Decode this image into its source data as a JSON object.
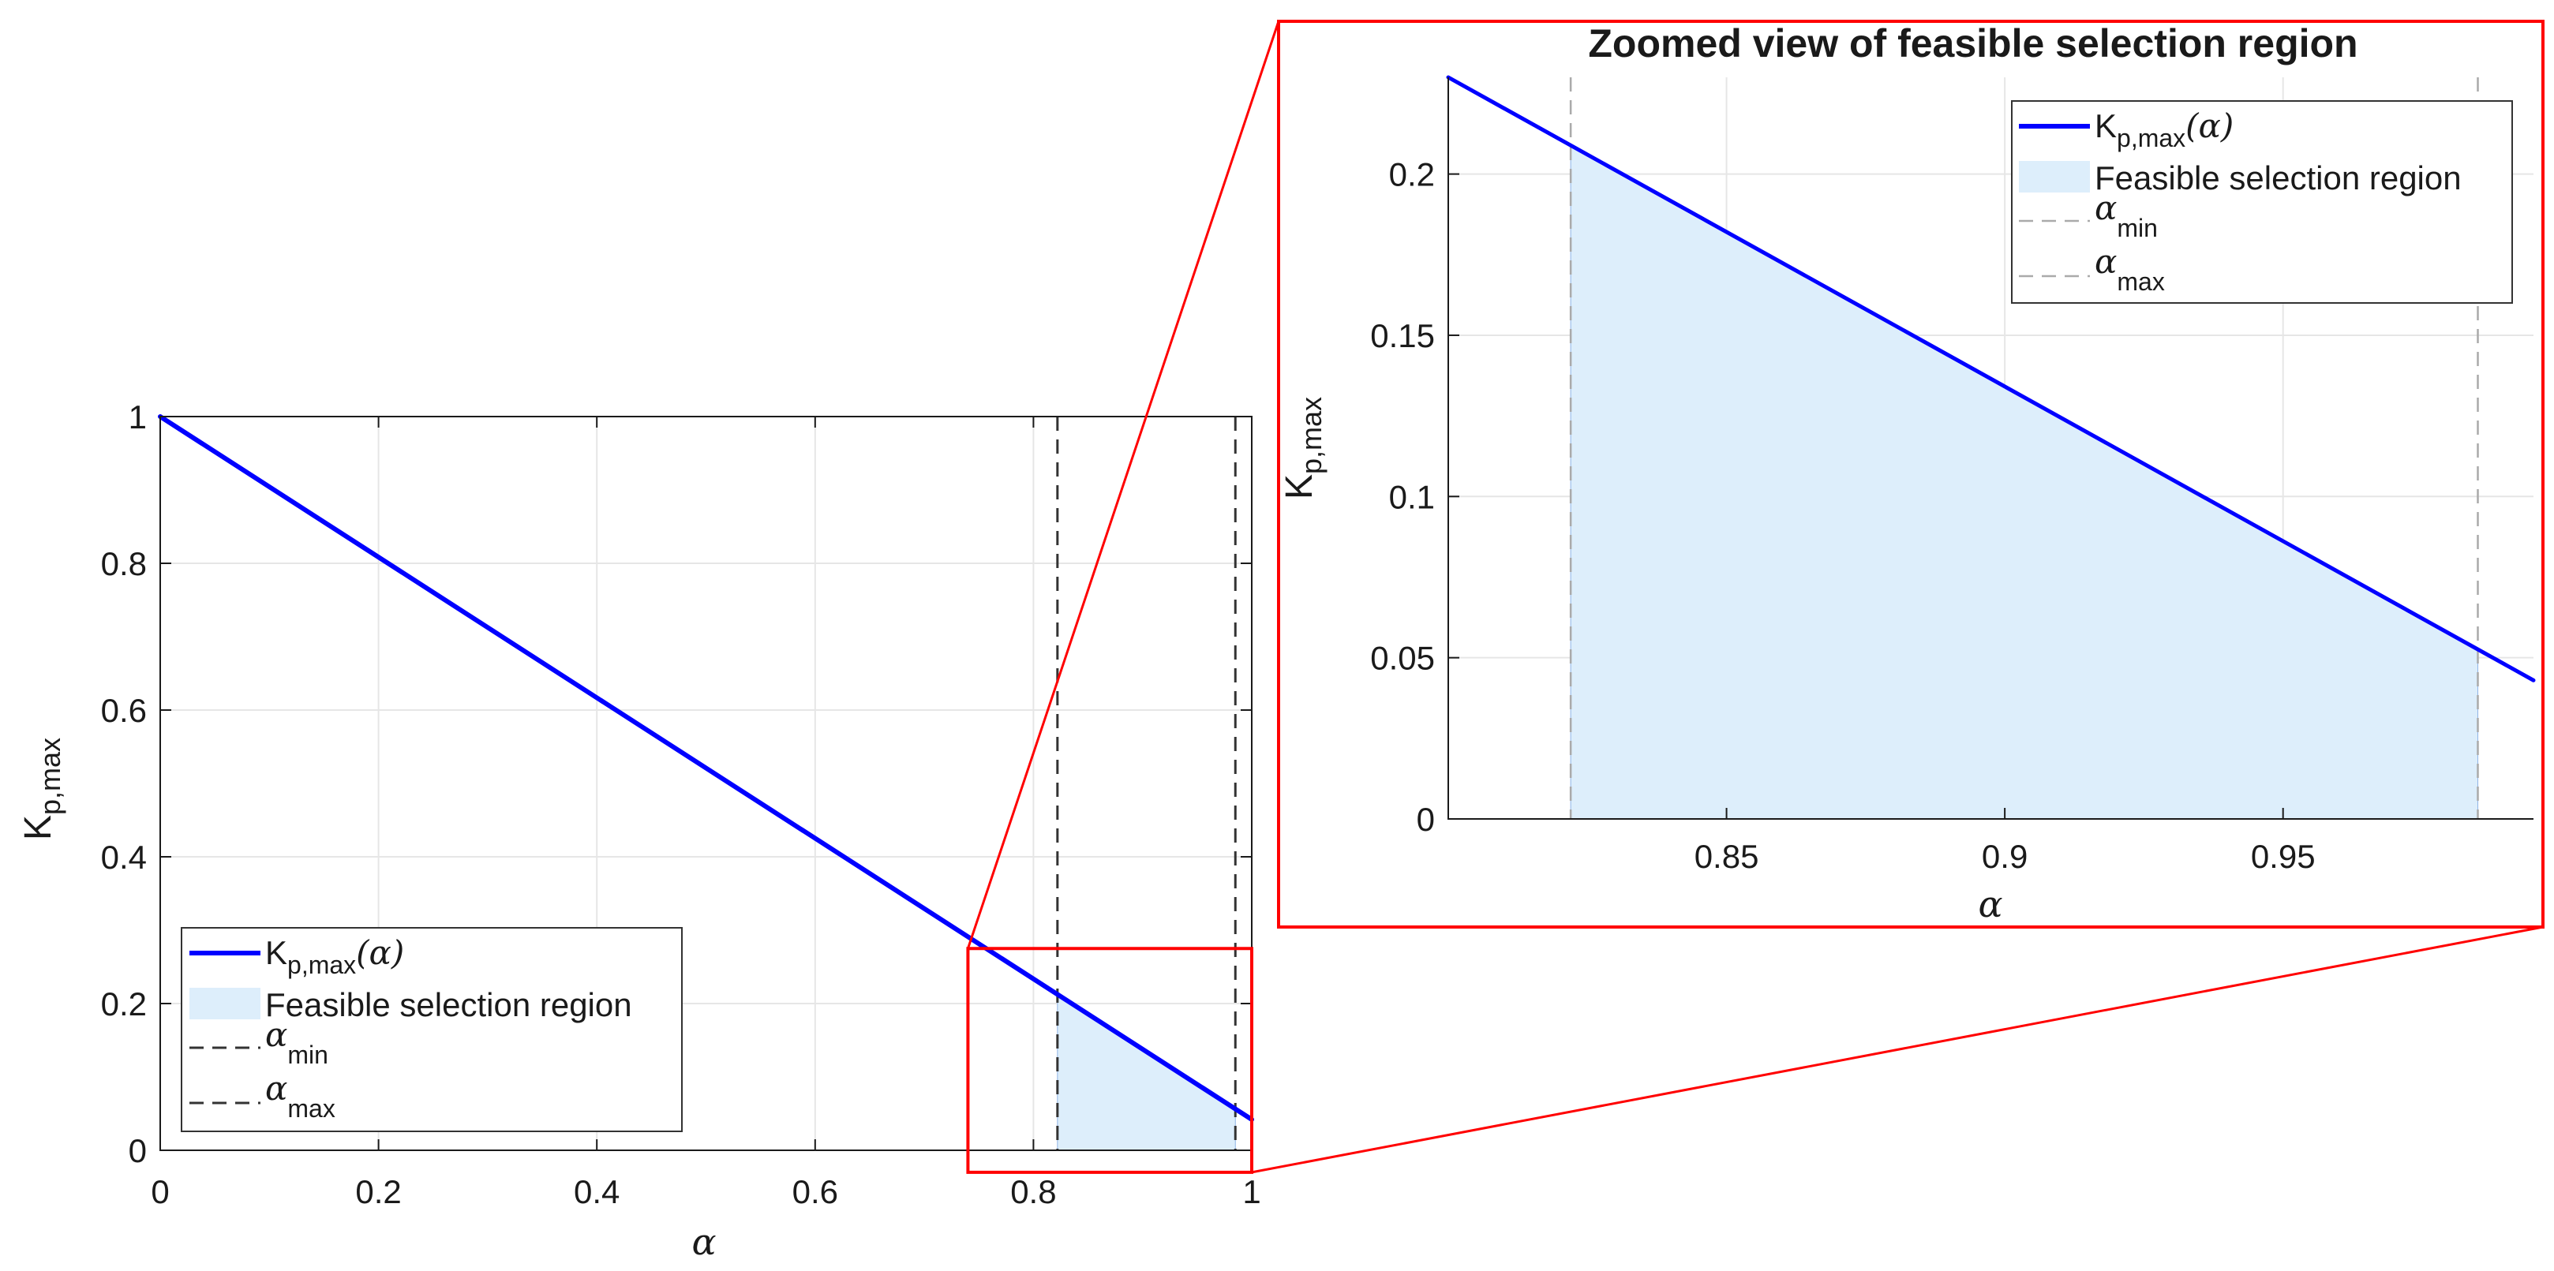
{
  "chart_data": [
    {
      "type": "line",
      "xlabel": "α",
      "ylabel_main": "K",
      "ylabel_sub": "p,max",
      "xlim": [
        0,
        1
      ],
      "ylim": [
        0,
        1
      ],
      "xticks": [
        0,
        0.2,
        0.4,
        0.6,
        0.8,
        1
      ],
      "yticks": [
        0,
        0.2,
        0.4,
        0.6,
        0.8,
        1
      ],
      "xtick_labels": [
        "0",
        "0.2",
        "0.4",
        "0.6",
        "0.8",
        "1"
      ],
      "ytick_labels": [
        "0",
        "0.2",
        "0.4",
        "0.6",
        "0.8",
        "1"
      ],
      "grid": true,
      "legend_placement": "bottom-left",
      "series": [
        {
          "name": "Kp,max(α)",
          "x": [
            0,
            1
          ],
          "y": [
            1,
            0.042
          ],
          "color": "#0000ff"
        }
      ],
      "feasible_region": {
        "name": "Feasible selection region",
        "x_start": 0.822,
        "x_end": 0.985,
        "color": "#ddeefb"
      },
      "alpha_min": 0.822,
      "alpha_max": 0.985,
      "zoom_box": {
        "x": [
          0.74,
          1.0
        ],
        "y": [
          -0.03,
          0.275
        ],
        "color": "#ff0000"
      }
    },
    {
      "type": "line",
      "title": "Zoomed view of feasible selection region",
      "xlabel": "α",
      "ylabel_main": "K",
      "ylabel_sub": "p,max",
      "xlim": [
        0.8,
        0.995
      ],
      "ylim": [
        0,
        0.23
      ],
      "xticks": [
        0.85,
        0.9,
        0.95
      ],
      "yticks": [
        0,
        0.05,
        0.1,
        0.15,
        0.2
      ],
      "xtick_labels": [
        "0.85",
        "0.9",
        "0.95"
      ],
      "ytick_labels": [
        "0",
        "0.05",
        "0.1",
        "0.15",
        "0.2"
      ],
      "grid": true,
      "legend_placement": "top-right",
      "series": [
        {
          "name": "Kp,max(α)",
          "x": [
            0.8,
            0.995
          ],
          "y": [
            0.23,
            0.043
          ],
          "color": "#0000ff"
        }
      ],
      "feasible_region": {
        "name": "Feasible selection region",
        "x_start": 0.822,
        "x_end": 0.985,
        "color": "#ddeefb"
      },
      "alpha_min": 0.822,
      "alpha_max": 0.985
    }
  ],
  "legend": {
    "line_main": "K",
    "line_sub": "p,max",
    "line_arg": "(α)",
    "region": "Feasible selection region",
    "amin_sym": "α",
    "amin_sub": "min",
    "amax_sym": "α",
    "amax_sub": "max"
  },
  "colors": {
    "curve": "#0000ff",
    "region_fill": "#ddeefb",
    "region_edge": "#8fb4e6",
    "zoom": "#ff0000",
    "dashed_main": "#333333",
    "dashed_zoom": "#aaaaaa",
    "grid": "#e6e6e6",
    "axis": "#1a1a1a"
  }
}
